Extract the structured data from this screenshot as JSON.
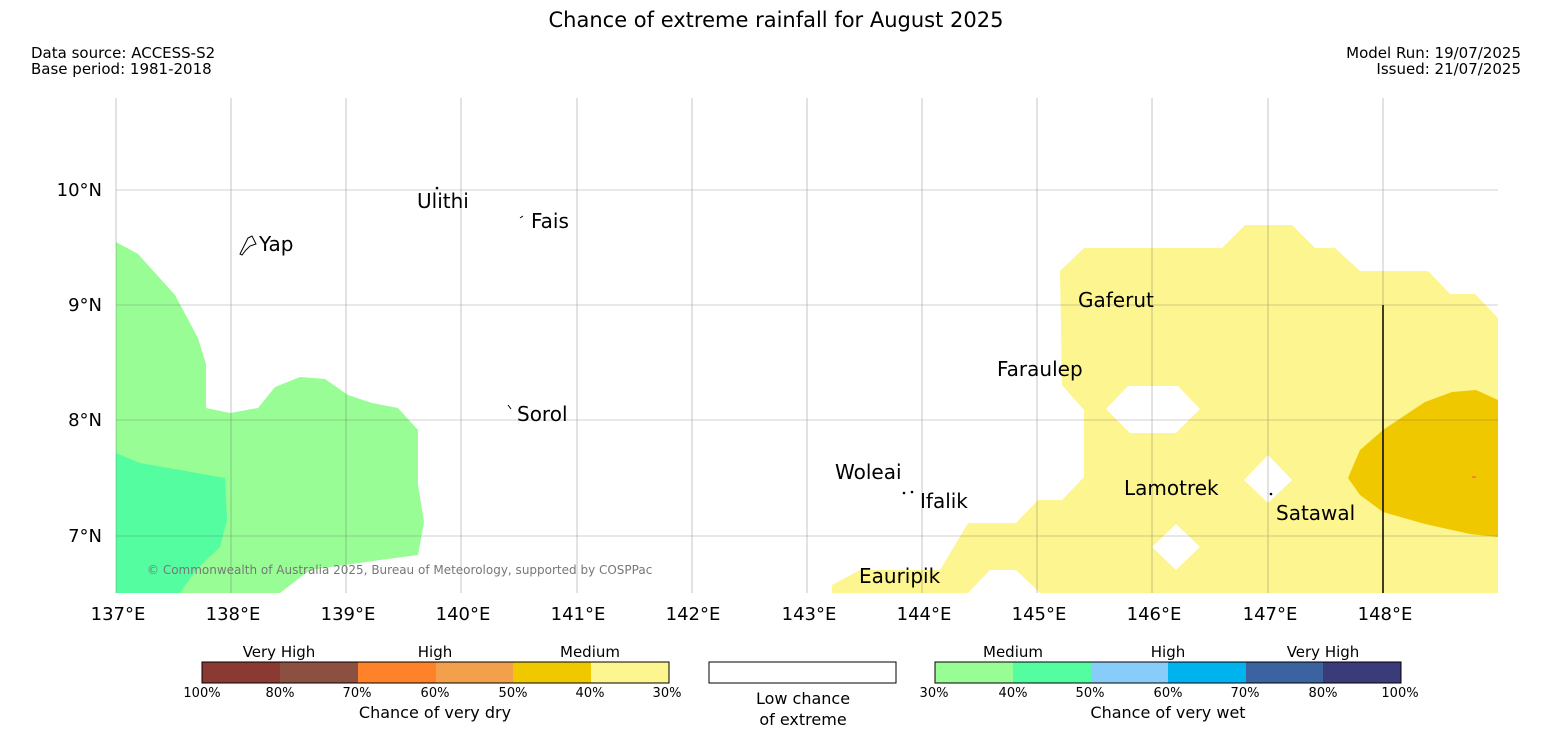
{
  "title": "Chance of extreme rainfall for August 2025",
  "meta": {
    "data_source": "Data source: ACCESS-S2",
    "base_period": "Base period: 1981-2018",
    "model_run": "Model Run: 19/07/2025",
    "issued": "Issued: 21/07/2025"
  },
  "map": {
    "latitude_labels": [
      "10°N",
      "9°N",
      "8°N",
      "7°N"
    ],
    "longitude_labels": [
      "137°E",
      "138°E",
      "139°E",
      "140°E",
      "141°E",
      "142°E",
      "143°E",
      "144°E",
      "145°E",
      "146°E",
      "147°E",
      "148°E"
    ],
    "places": {
      "yap": "Yap",
      "ulithi": "Ulithi",
      "fais": "Fais",
      "sorol": "Sorol",
      "gaferut": "Gaferut",
      "faraulep": "Faraulep",
      "woleai": "Woleai",
      "ifalik": "Ifalik",
      "lamotrek": "Lamotrek",
      "satawal": "Satawal",
      "eauripik": "Eauripik"
    },
    "copyright": "© Commonwealth of Australia 2025, Bureau of Meteorology, supported by COSPPac",
    "colors": {
      "dry_medium_light": "#fdf58f",
      "dry_medium_dark": "#f0c800",
      "wet_medium_light": "#99fd96",
      "wet_medium_dark": "#55fda1"
    }
  },
  "legend": {
    "dry": {
      "categories": [
        "Very High",
        "High",
        "Medium"
      ],
      "ticks": [
        "100%",
        "80%",
        "70%",
        "60%",
        "50%",
        "40%",
        "30%"
      ],
      "colors": [
        "#8b3a33",
        "#8c5040",
        "#fd8229",
        "#f2a04c",
        "#f0c800",
        "#fdf58f"
      ],
      "title": "Chance of very dry"
    },
    "neutral": {
      "line1": "Low chance",
      "line2": "of extreme"
    },
    "wet": {
      "categories": [
        "Medium",
        "High",
        "Very High"
      ],
      "ticks": [
        "30%",
        "40%",
        "50%",
        "60%",
        "70%",
        "80%",
        "100%"
      ],
      "colors": [
        "#99fd96",
        "#55fda1",
        "#88cdfa",
        "#00b2ee",
        "#3a63a0",
        "#3a3c7a"
      ],
      "title": "Chance of very wet"
    }
  }
}
